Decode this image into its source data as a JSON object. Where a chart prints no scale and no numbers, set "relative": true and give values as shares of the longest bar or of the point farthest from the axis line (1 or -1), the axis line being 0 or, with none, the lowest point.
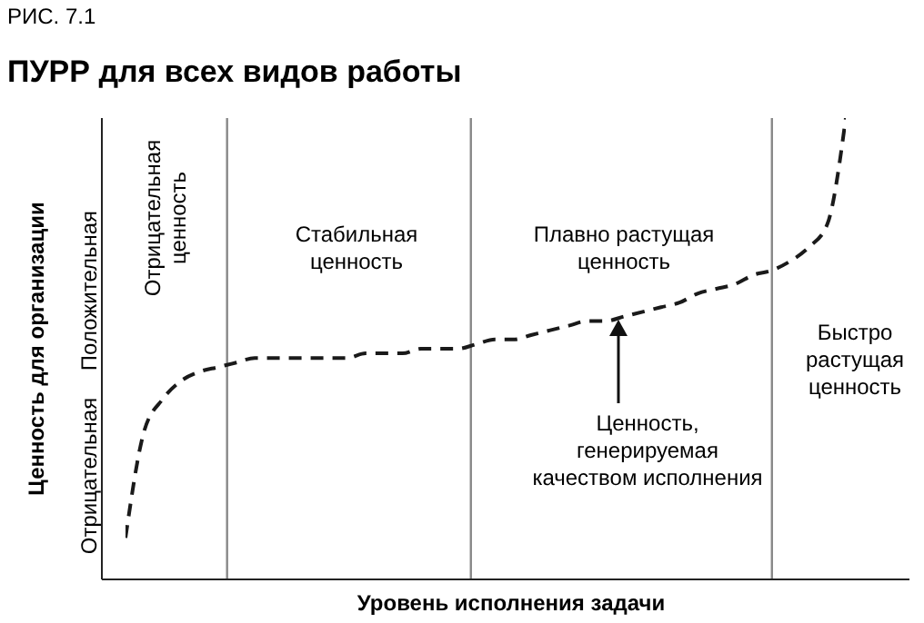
{
  "chart_data": {
    "type": "line",
    "relative": true,
    "title": "ПУРР для всех видов работы",
    "xlabel": "Уровень исполнения задачи",
    "ylabel": "Ценность для организации",
    "categories": [
      null,
      null,
      null,
      null,
      null,
      null,
      null,
      null,
      null,
      null,
      null,
      null,
      null,
      null,
      null,
      null,
      null,
      null,
      null,
      null,
      null,
      null,
      null,
      null,
      null,
      null,
      null,
      null,
      null,
      null,
      null,
      null,
      null,
      null,
      null,
      null,
      null,
      null,
      null,
      null
    ],
    "series": [
      {
        "color": "#1a1a1a",
        "values": [
          0.09,
          0.32,
          0.39,
          0.43,
          0.45,
          0.46,
          0.47,
          0.48,
          0.48,
          0.48,
          0.48,
          0.48,
          0.48,
          0.49,
          0.49,
          0.49,
          0.5,
          0.5,
          0.5,
          0.51,
          0.52,
          0.52,
          0.53,
          0.54,
          0.55,
          0.56,
          0.56,
          0.57,
          0.58,
          0.59,
          0.6,
          0.62,
          0.63,
          0.64,
          0.66,
          0.67,
          0.69,
          0.72,
          0.77,
          1
        ]
      }
    ],
    "line_style": "dashed",
    "marker": "none",
    "grid": false,
    "legend": false,
    "annotations": [
      "РИС. 7.1",
      "Отрицательная",
      "Положительная",
      "Отрицательная\nценность",
      "Стабильная\nценность",
      "Плавно растущая\nценность",
      "Быстро\nрастущая\nценность",
      "Ценность,\nгенерируемая\nкачеством исполнения"
    ]
  }
}
